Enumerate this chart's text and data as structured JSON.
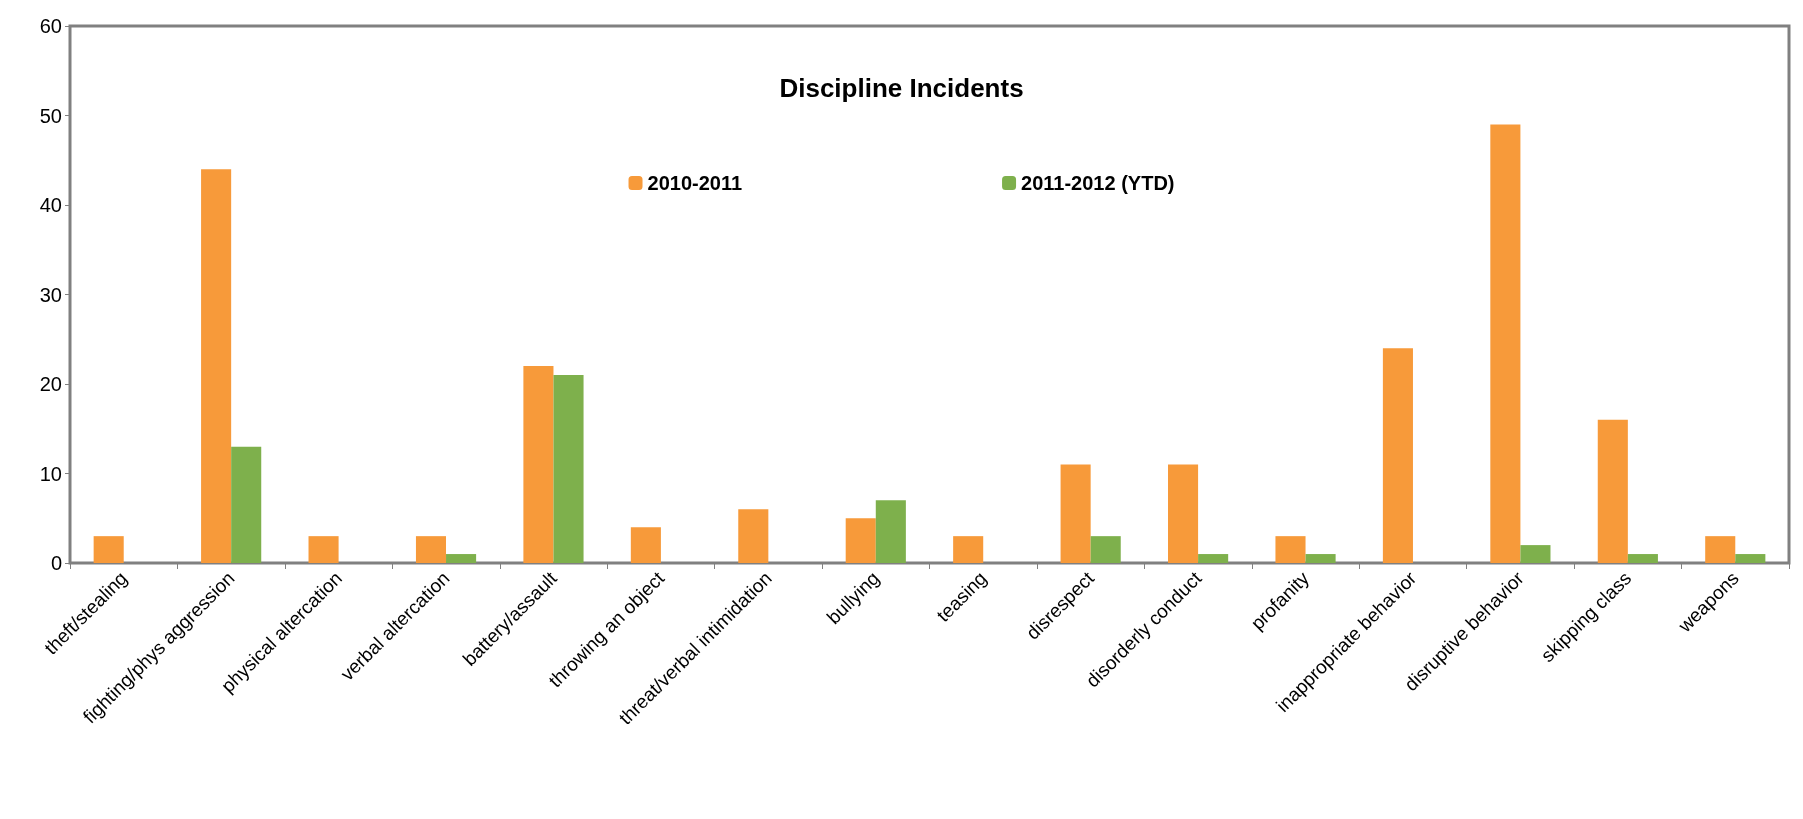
{
  "chart_data": {
    "type": "bar",
    "title": "Discipline Incidents",
    "categories": [
      "theft/stealing",
      "fighting/phys aggression",
      "physical altercation",
      "verbal altercation",
      "battery/assault",
      "throwing an object",
      "threat/verbal intimidation",
      "bullying",
      "teasing",
      "disrespect",
      "disorderly conduct",
      "profanity",
      "inappropriate behavior",
      "disruptive behavior",
      "skipping class",
      "weapons"
    ],
    "series": [
      {
        "name": "2010-2011",
        "color": "#f79a3a",
        "values": [
          3,
          44,
          3,
          3,
          22,
          4,
          6,
          5,
          3,
          11,
          11,
          3,
          24,
          49,
          16,
          3
        ]
      },
      {
        "name": "2011-2012 (YTD)",
        "color": "#7eb04c",
        "values": [
          0,
          13,
          0,
          1,
          21,
          0,
          0,
          7,
          0,
          3,
          1,
          1,
          0,
          2,
          1,
          1
        ]
      }
    ],
    "ylim": [
      0,
      60
    ],
    "yticks": [
      0,
      10,
      20,
      30,
      40,
      50,
      60
    ],
    "grid": false,
    "legend": "top"
  }
}
